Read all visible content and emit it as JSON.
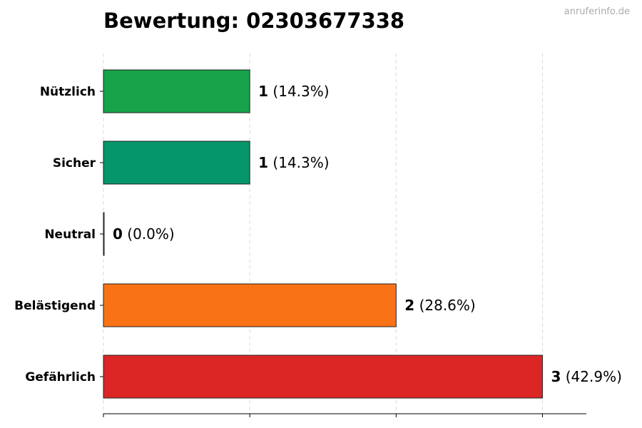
{
  "header": {
    "title": "Bewertung: 02303677338",
    "watermark": "anruferinfo.de"
  },
  "chart_data": {
    "type": "bar",
    "orientation": "horizontal",
    "title": "Bewertung: 02303677338",
    "xlabel": "",
    "ylabel": "",
    "categories": [
      "Nützlich",
      "Sicher",
      "Neutral",
      "Belästigend",
      "Gefährlich"
    ],
    "values": [
      1,
      1,
      0,
      2,
      3
    ],
    "value_labels": [
      "1",
      "1",
      "0",
      "2",
      "3"
    ],
    "percent_labels": [
      "(14.3%)",
      "(14.3%)",
      "(0.0%)",
      "(28.6%)",
      "(42.9%)"
    ],
    "colors": [
      "#16a34a",
      "#059669",
      "#9ca3af",
      "#f97316",
      "#dc2626"
    ],
    "xlim": [
      0,
      3.3
    ],
    "grid": "vertical dashed",
    "legend": "none"
  }
}
